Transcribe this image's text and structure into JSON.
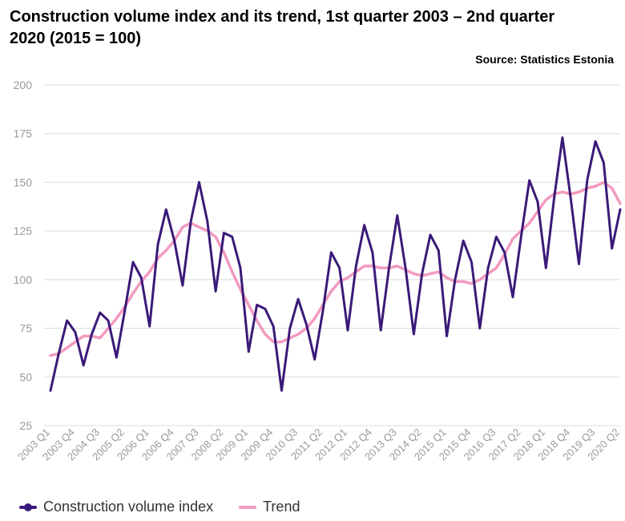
{
  "chart_data": {
    "type": "line",
    "title": "Construction volume index and its trend, 1st quarter 2003 – 2nd quarter 2020 (2015 = 100)",
    "source": "Source: Statistics Estonia",
    "ylim": [
      25,
      200
    ],
    "yticks": [
      25,
      50,
      75,
      100,
      125,
      150,
      175,
      200
    ],
    "grid": true,
    "legend_position": "bottom-left",
    "x": [
      "2003 Q1",
      "2003 Q2",
      "2003 Q3",
      "2003 Q4",
      "2004 Q1",
      "2004 Q2",
      "2004 Q3",
      "2004 Q4",
      "2005 Q1",
      "2005 Q2",
      "2005 Q3",
      "2005 Q4",
      "2006 Q1",
      "2006 Q2",
      "2006 Q3",
      "2006 Q4",
      "2007 Q1",
      "2007 Q2",
      "2007 Q3",
      "2007 Q4",
      "2008 Q1",
      "2008 Q2",
      "2008 Q3",
      "2008 Q4",
      "2009 Q1",
      "2009 Q2",
      "2009 Q3",
      "2009 Q4",
      "2010 Q1",
      "2010 Q2",
      "2010 Q3",
      "2010 Q4",
      "2011 Q1",
      "2011 Q2",
      "2011 Q3",
      "2011 Q4",
      "2012 Q1",
      "2012 Q2",
      "2012 Q3",
      "2012 Q4",
      "2013 Q1",
      "2013 Q2",
      "2013 Q3",
      "2013 Q4",
      "2014 Q1",
      "2014 Q2",
      "2014 Q3",
      "2014 Q4",
      "2015 Q1",
      "2015 Q2",
      "2015 Q3",
      "2015 Q4",
      "2016 Q1",
      "2016 Q2",
      "2016 Q3",
      "2016 Q4",
      "2017 Q1",
      "2017 Q2",
      "2017 Q3",
      "2017 Q4",
      "2018 Q1",
      "2018 Q2",
      "2018 Q3",
      "2018 Q4",
      "2019 Q1",
      "2019 Q2",
      "2019 Q3",
      "2019 Q4",
      "2020 Q1",
      "2020 Q2"
    ],
    "tick_labels": [
      "2003 Q1",
      "2003 Q4",
      "2004 Q3",
      "2005 Q2",
      "2006 Q1",
      "2006 Q4",
      "2007 Q3",
      "2008 Q2",
      "2009 Q1",
      "2009 Q4",
      "2010 Q3",
      "2011 Q2",
      "2012 Q1",
      "2012 Q4",
      "2013 Q3",
      "2014 Q2",
      "2015 Q1",
      "2015 Q4",
      "2016 Q3",
      "2017 Q2",
      "2018 Q1",
      "2018 Q4",
      "2019 Q3",
      "2020 Q2"
    ],
    "series": [
      {
        "name": "Construction volume index",
        "color": "#3a1a78",
        "values": [
          43,
          62,
          79,
          73,
          56,
          72,
          83,
          79,
          60,
          84,
          109,
          101,
          76,
          118,
          136,
          120,
          97,
          130,
          150,
          130,
          94,
          124,
          122,
          106,
          63,
          87,
          85,
          76,
          43,
          75,
          90,
          77,
          59,
          84,
          114,
          106,
          74,
          107,
          128,
          114,
          74,
          106,
          133,
          106,
          72,
          103,
          123,
          115,
          71,
          100,
          120,
          109,
          75,
          106,
          122,
          114,
          91,
          122,
          151,
          140,
          106,
          142,
          173,
          142,
          108,
          151,
          171,
          160,
          116,
          136
        ]
      },
      {
        "name": "Trend",
        "color": "#f29ac0",
        "values": [
          61,
          62,
          65,
          68,
          71,
          71,
          70,
          75,
          80,
          86,
          93,
          99,
          104,
          111,
          115,
          120,
          127,
          129,
          127,
          125,
          122,
          114,
          104,
          95,
          87,
          79,
          72,
          68,
          68,
          70,
          72,
          75,
          80,
          87,
          94,
          99,
          101,
          104,
          107,
          107,
          106,
          106,
          107,
          105,
          103,
          102,
          103,
          104,
          101,
          99,
          99,
          98,
          100,
          103,
          106,
          113,
          121,
          125,
          129,
          135,
          141,
          144,
          145,
          144,
          145,
          147,
          148,
          150,
          147,
          139
        ]
      }
    ]
  }
}
